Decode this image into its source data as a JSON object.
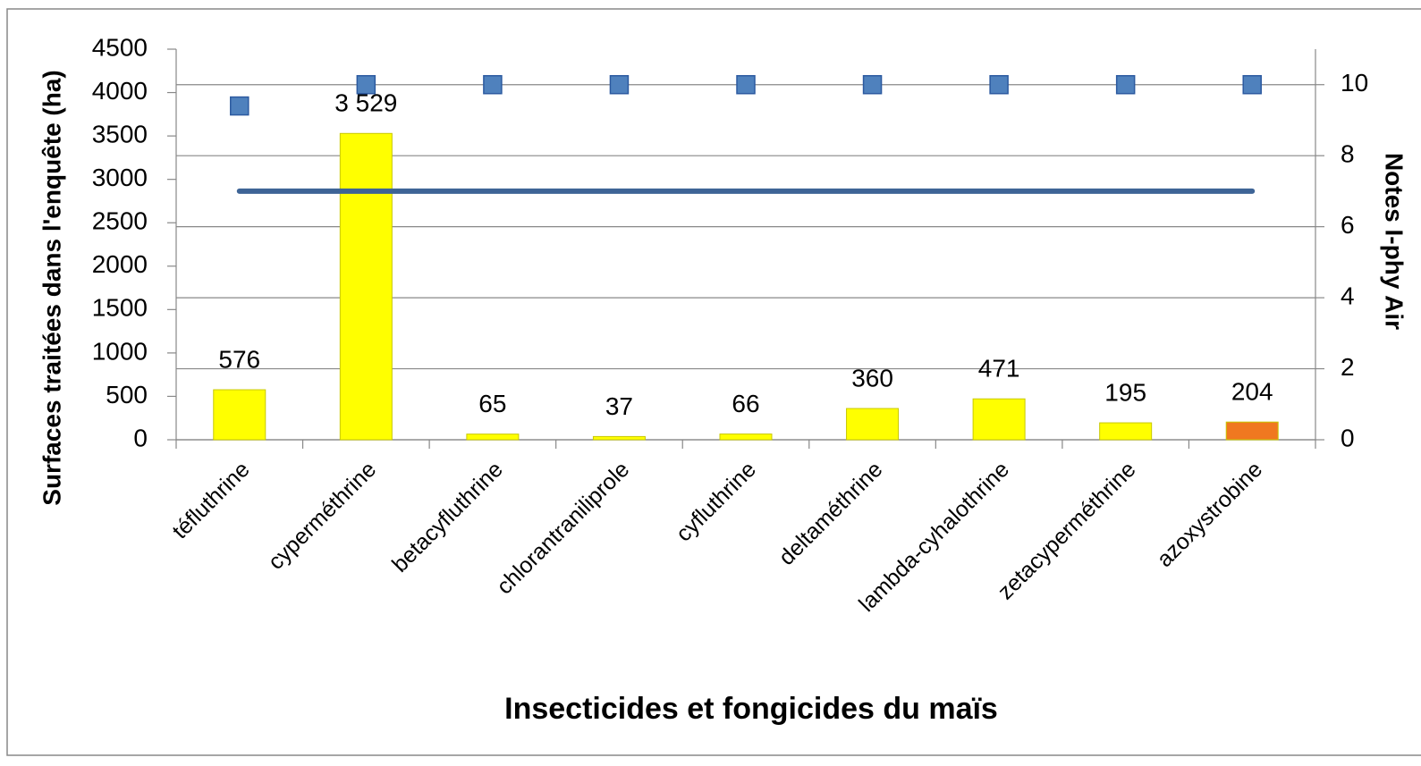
{
  "chart_data": {
    "type": "bar",
    "xlabel": "Insecticides et fongicides du maïs",
    "ylabel": "Surfaces traitées dans l'enquête (ha)",
    "y2label": "Notes I-phy Air",
    "categories": [
      "téfluthrine",
      "cyperméthrine",
      "betacyfluthrine",
      "chlorantraniliprole",
      "cyfluthrine",
      "deltaméthrine",
      "lambda-cyhalothrine",
      "zetacyperméthrine",
      "azoxystrobine"
    ],
    "series": [
      {
        "type": "bar",
        "values": [
          576,
          3529,
          65,
          37,
          66,
          360,
          471,
          195,
          204
        ],
        "value_labels": [
          "576",
          "3 529",
          "65",
          "37",
          "66",
          "360",
          "471",
          "195",
          "204"
        ],
        "colors": [
          "#ffff00",
          "#ffff00",
          "#ffff00",
          "#ffff00",
          "#ffff00",
          "#ffff00",
          "#ffff00",
          "#ffff00",
          "#f07820"
        ]
      },
      {
        "type": "scatter",
        "axis": "y2",
        "color": "#4f81bd",
        "values": [
          9.4,
          10,
          10,
          10,
          10,
          10,
          10,
          10,
          10
        ]
      },
      {
        "type": "line",
        "axis": "y2",
        "color": "#3e6496",
        "values": [
          7,
          7,
          7,
          7,
          7,
          7,
          7,
          7,
          7
        ]
      }
    ],
    "ylim": [
      0,
      4500
    ],
    "yticks": [
      0,
      500,
      1000,
      1500,
      2000,
      2500,
      3000,
      3500,
      4000,
      4500
    ],
    "y2lim": [
      0,
      11
    ],
    "y2ticks": [
      0,
      2,
      4,
      6,
      8,
      10
    ],
    "grid": true
  }
}
